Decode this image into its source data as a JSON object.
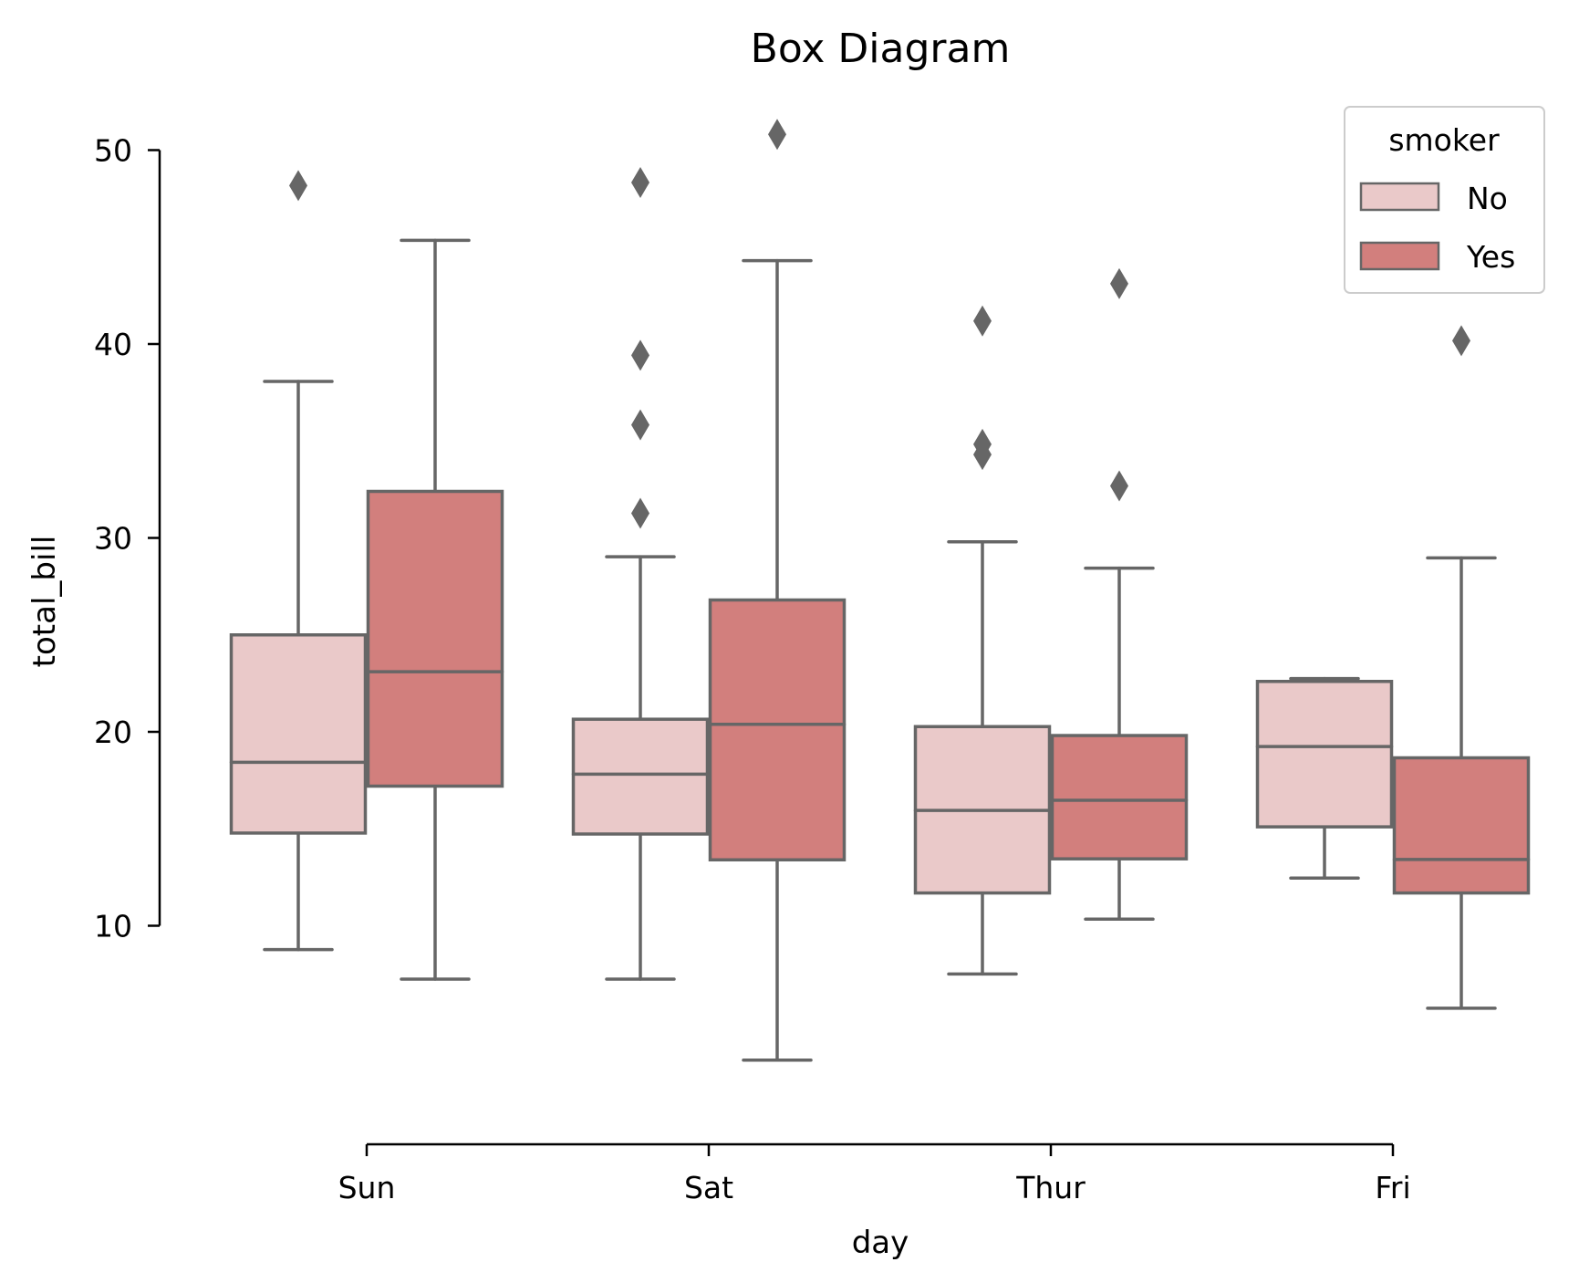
{
  "chart_data": {
    "type": "box",
    "title": "Box Diagram",
    "xlabel": "day",
    "ylabel": "total_bill",
    "categories": [
      "Sun",
      "Sat",
      "Thur",
      "Fri"
    ],
    "yticks": [
      "10",
      "20",
      "30",
      "40",
      "50"
    ],
    "ytick_values": [
      10,
      20,
      30,
      40,
      50
    ],
    "ylim": [
      0.5,
      51.8
    ],
    "grid": false,
    "legend": {
      "title": "smoker",
      "placement": "top-right",
      "entries": [
        "No",
        "Yes"
      ]
    },
    "colors": {
      "No": "#eac9c9",
      "Yes": "#d27f7d",
      "line": "#666666",
      "axis": "#000000"
    },
    "series": [
      {
        "name": "No",
        "boxes": [
          {
            "category": "Sun",
            "whisker_low": 8.77,
            "q1": 14.78,
            "median": 18.43,
            "q3": 25.0,
            "whisker_high": 38.07,
            "outliers": [
              48.17
            ]
          },
          {
            "category": "Sat",
            "whisker_low": 7.25,
            "q1": 14.73,
            "median": 17.82,
            "q3": 20.65,
            "whisker_high": 29.03,
            "outliers": [
              31.27,
              35.83,
              39.42,
              48.33
            ]
          },
          {
            "category": "Thur",
            "whisker_low": 7.51,
            "q1": 11.69,
            "median": 15.95,
            "q3": 20.27,
            "whisker_high": 29.8,
            "outliers": [
              34.3,
              34.83,
              41.19
            ]
          },
          {
            "category": "Fri",
            "whisker_low": 12.46,
            "q1": 15.1,
            "median": 19.24,
            "q3": 22.6,
            "whisker_high": 22.75,
            "outliers": []
          }
        ]
      },
      {
        "name": "Yes",
        "boxes": [
          {
            "category": "Sun",
            "whisker_low": 7.25,
            "q1": 17.2,
            "median": 23.1,
            "q3": 32.4,
            "whisker_high": 45.35,
            "outliers": []
          },
          {
            "category": "Sat",
            "whisker_low": 3.07,
            "q1": 13.4,
            "median": 20.39,
            "q3": 26.8,
            "whisker_high": 44.3,
            "outliers": [
              50.81
            ]
          },
          {
            "category": "Thur",
            "whisker_low": 10.34,
            "q1": 13.45,
            "median": 16.47,
            "q3": 19.81,
            "whisker_high": 28.44,
            "outliers": [
              32.68,
              43.11
            ]
          },
          {
            "category": "Fri",
            "whisker_low": 5.75,
            "q1": 11.69,
            "median": 13.42,
            "q3": 18.66,
            "whisker_high": 28.97,
            "outliers": [
              40.17
            ]
          }
        ]
      }
    ]
  }
}
